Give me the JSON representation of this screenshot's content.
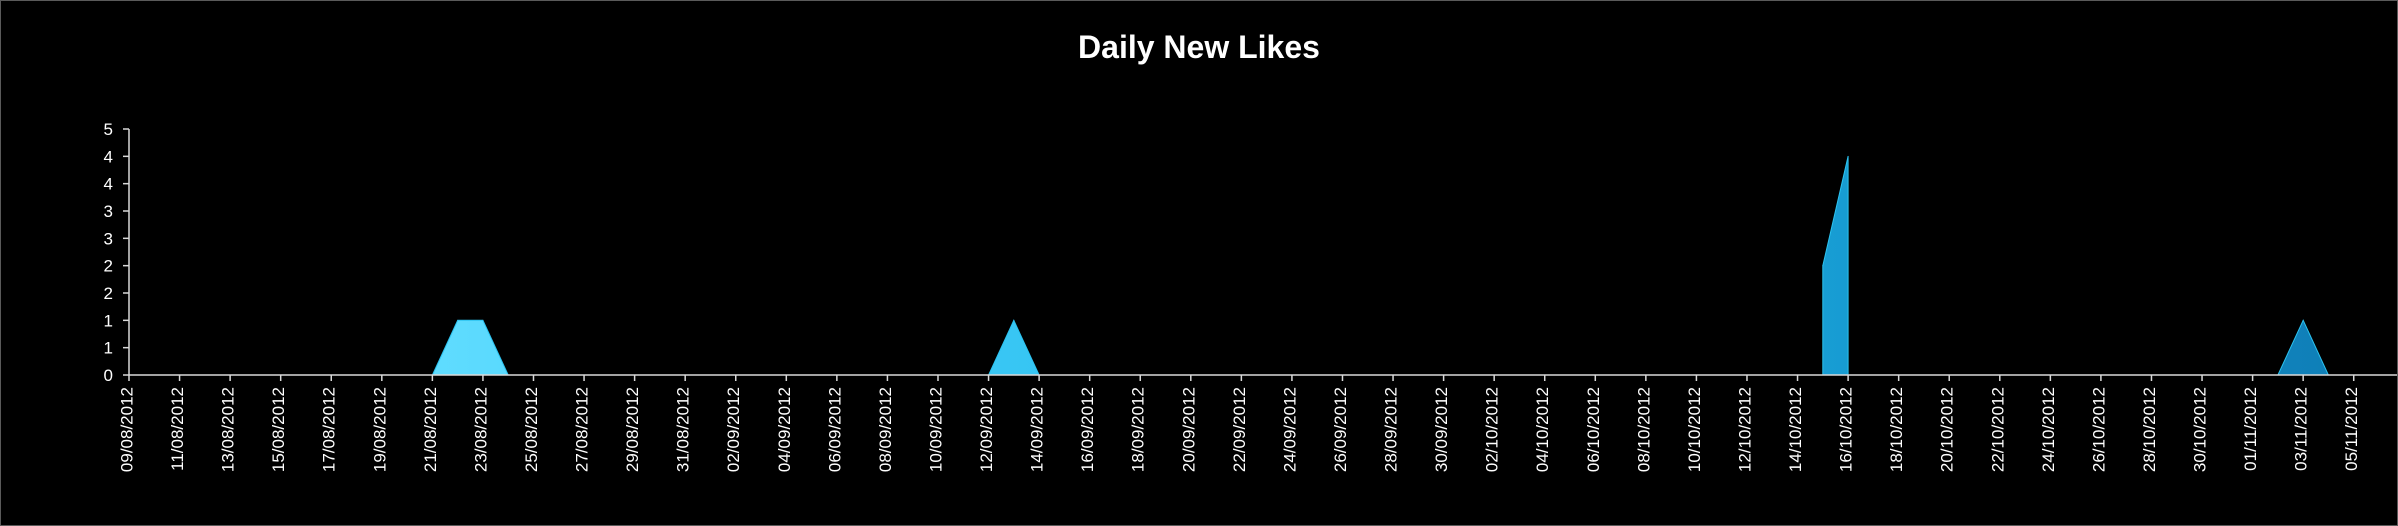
{
  "chart_data": {
    "type": "area",
    "title": "Daily New Likes",
    "xlabel": "",
    "ylabel": "",
    "y_tick_labels": [
      "0",
      "1",
      "1",
      "2",
      "2",
      "3",
      "3",
      "4",
      "4",
      "5"
    ],
    "ylim": [
      0,
      4.5
    ],
    "x_tick_labels": [
      "09/08/2012",
      "11/08/2012",
      "13/08/2012",
      "15/08/2012",
      "17/08/2012",
      "19/08/2012",
      "21/08/2012",
      "23/08/2012",
      "25/08/2012",
      "27/08/2012",
      "29/08/2012",
      "31/08/2012",
      "02/09/2012",
      "04/09/2012",
      "06/09/2012",
      "08/09/2012",
      "10/09/2012",
      "12/09/2012",
      "14/09/2012",
      "16/09/2012",
      "18/09/2012",
      "20/09/2012",
      "22/09/2012",
      "24/09/2012",
      "26/09/2012",
      "28/09/2012",
      "30/09/2012",
      "02/10/2012",
      "04/10/2012",
      "06/10/2012",
      "08/10/2012",
      "10/10/2012",
      "12/10/2012",
      "14/10/2012",
      "16/10/2012",
      "18/10/2012",
      "20/10/2012",
      "22/10/2012",
      "24/10/2012",
      "26/10/2012",
      "28/10/2012",
      "30/10/2012",
      "01/11/2012",
      "03/11/2012",
      "05/11/2012"
    ],
    "x_start": "09/08/2012",
    "x_end": "06/11/2012",
    "series": [
      {
        "color": "#2bc3f0",
        "points": [
          {
            "x": "21/08/2012",
            "y": 0
          },
          {
            "x": "22/08/2012",
            "y": 1
          },
          {
            "x": "23/08/2012",
            "y": 1
          },
          {
            "x": "24/08/2012",
            "y": 0
          },
          {
            "x": "12/09/2012",
            "y": 0
          },
          {
            "x": "13/09/2012",
            "y": 1
          },
          {
            "x": "14/09/2012",
            "y": 0
          },
          {
            "x": "15/10/2012",
            "y": 0
          },
          {
            "x": "15/10/2012",
            "y": 2
          },
          {
            "x": "16/10/2012",
            "y": 4
          },
          {
            "x": "16/10/2012",
            "y": 0
          },
          {
            "x": "02/11/2012",
            "y": 0
          },
          {
            "x": "03/11/2012",
            "y": 1
          },
          {
            "x": "04/11/2012",
            "y": 0
          }
        ]
      }
    ],
    "grid": false,
    "legend": "none"
  }
}
